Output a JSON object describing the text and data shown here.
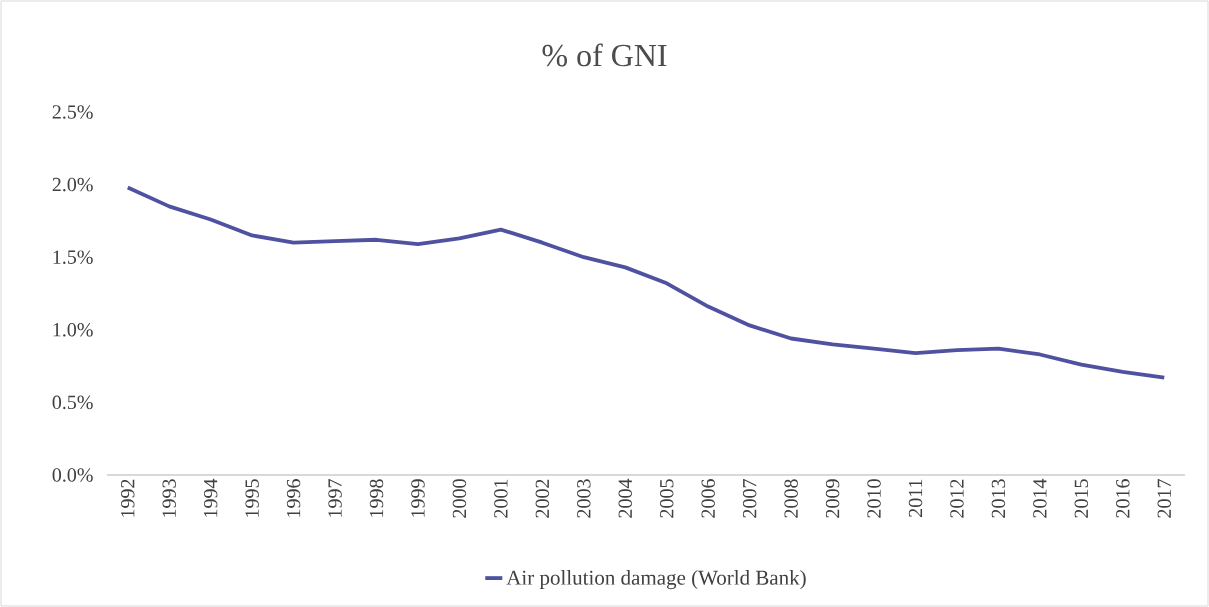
{
  "chart_data": {
    "type": "line",
    "title": "% of GNI",
    "categories": [
      "1992",
      "1993",
      "1994",
      "1995",
      "1996",
      "1997",
      "1998",
      "1999",
      "2000",
      "2001",
      "2002",
      "2003",
      "2004",
      "2005",
      "2006",
      "2007",
      "2008",
      "2009",
      "2010",
      "2011",
      "2012",
      "2013",
      "2014",
      "2015",
      "2016",
      "2017"
    ],
    "series": [
      {
        "name": "Air pollution damage (World Bank)",
        "color": "#4f52a0",
        "values": [
          1.98,
          1.85,
          1.76,
          1.65,
          1.6,
          1.61,
          1.62,
          1.59,
          1.63,
          1.69,
          1.6,
          1.5,
          1.43,
          1.32,
          1.16,
          1.03,
          0.94,
          0.9,
          0.87,
          0.84,
          0.86,
          0.87,
          0.83,
          0.76,
          0.71,
          0.67
        ]
      }
    ],
    "ylim": [
      0,
      2.5
    ],
    "yticks": [
      {
        "value": 0,
        "label": "0.0%"
      },
      {
        "value": 0.5,
        "label": "0.5%"
      },
      {
        "value": 1,
        "label": "1.0%"
      },
      {
        "value": 1.5,
        "label": "1.5%"
      },
      {
        "value": 2,
        "label": "2.0%"
      },
      {
        "value": 2.5,
        "label": "2.5%"
      }
    ],
    "grid": false,
    "legend": "bottom",
    "marker": "none",
    "line_style": "solid"
  }
}
